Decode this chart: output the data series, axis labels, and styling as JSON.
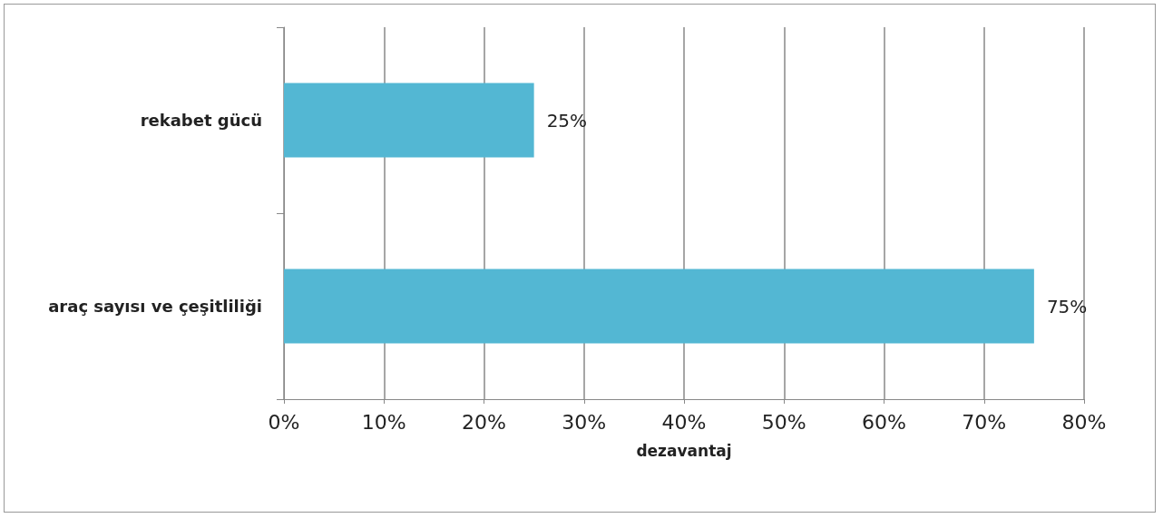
{
  "chart_data": {
    "type": "bar",
    "orientation": "horizontal",
    "categories": [
      "rekabet gücü",
      "araç sayısı ve çeşitliliği"
    ],
    "values": [
      25,
      75
    ],
    "color": "#53b7d3",
    "value_labels": [
      "25%",
      "75%"
    ],
    "xlabel": "dezavantaj",
    "xlim": [
      0,
      80
    ],
    "xticks": [
      {
        "value": 0,
        "label": "0%"
      },
      {
        "value": 10,
        "label": "10%"
      },
      {
        "value": 20,
        "label": "20%"
      },
      {
        "value": 30,
        "label": "30%"
      },
      {
        "value": 40,
        "label": "40%"
      },
      {
        "value": 50,
        "label": "50%"
      },
      {
        "value": 60,
        "label": "60%"
      },
      {
        "value": 70,
        "label": "70%"
      },
      {
        "value": 80,
        "label": "80%"
      }
    ],
    "grid": "x"
  }
}
